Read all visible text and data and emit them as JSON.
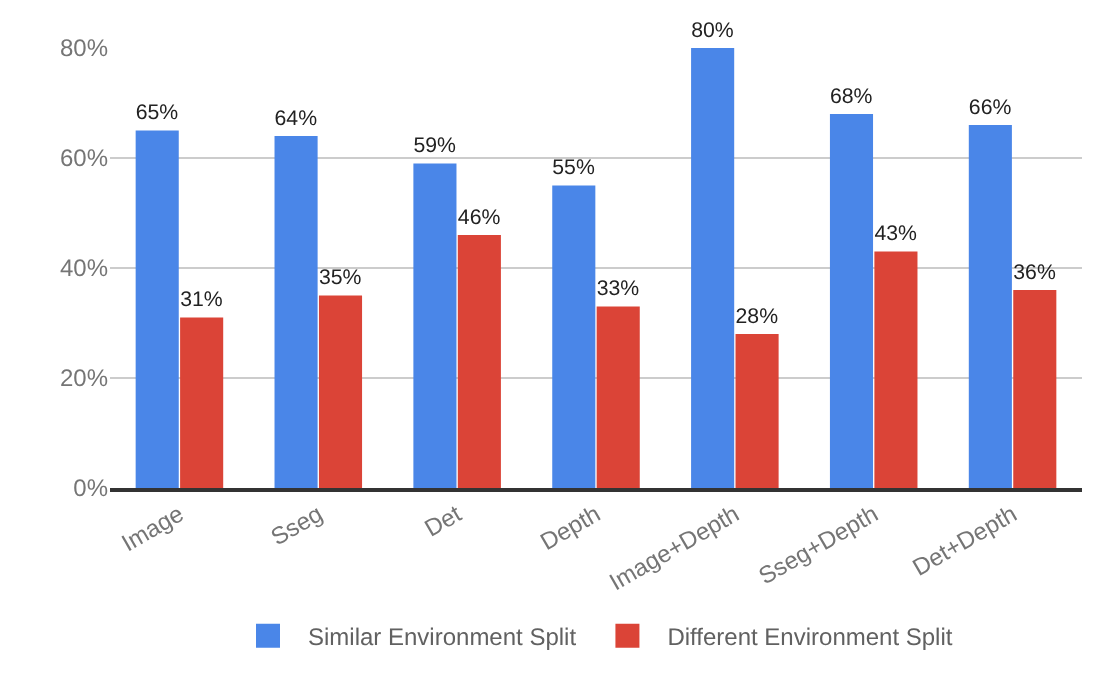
{
  "chart_data": {
    "type": "bar",
    "categories": [
      "Image",
      "Sseg",
      "Det",
      "Depth",
      "Image+Depth",
      "Sseg+Depth",
      "Det+Depth"
    ],
    "series": [
      {
        "name": "Similar Environment Split",
        "color": "#4a86e8",
        "values": [
          65,
          64,
          59,
          55,
          80,
          68,
          66
        ],
        "value_labels": [
          "65%",
          "64%",
          "59%",
          "55%",
          "80%",
          "68%",
          "66%"
        ]
      },
      {
        "name": "Different Environment Split",
        "color": "#db4437",
        "values": [
          31,
          35,
          46,
          33,
          28,
          43,
          36
        ],
        "value_labels": [
          "31%",
          "35%",
          "46%",
          "33%",
          "28%",
          "43%",
          "36%"
        ]
      }
    ],
    "ylim": [
      0,
      80
    ],
    "yticks": [
      {
        "value": 0,
        "label": "0%"
      },
      {
        "value": 20,
        "label": "20%"
      },
      {
        "value": 40,
        "label": "40%"
      },
      {
        "value": 60,
        "label": "60%"
      },
      {
        "value": 80,
        "label": "80%"
      }
    ],
    "grid": "y",
    "legend": "bottom"
  }
}
